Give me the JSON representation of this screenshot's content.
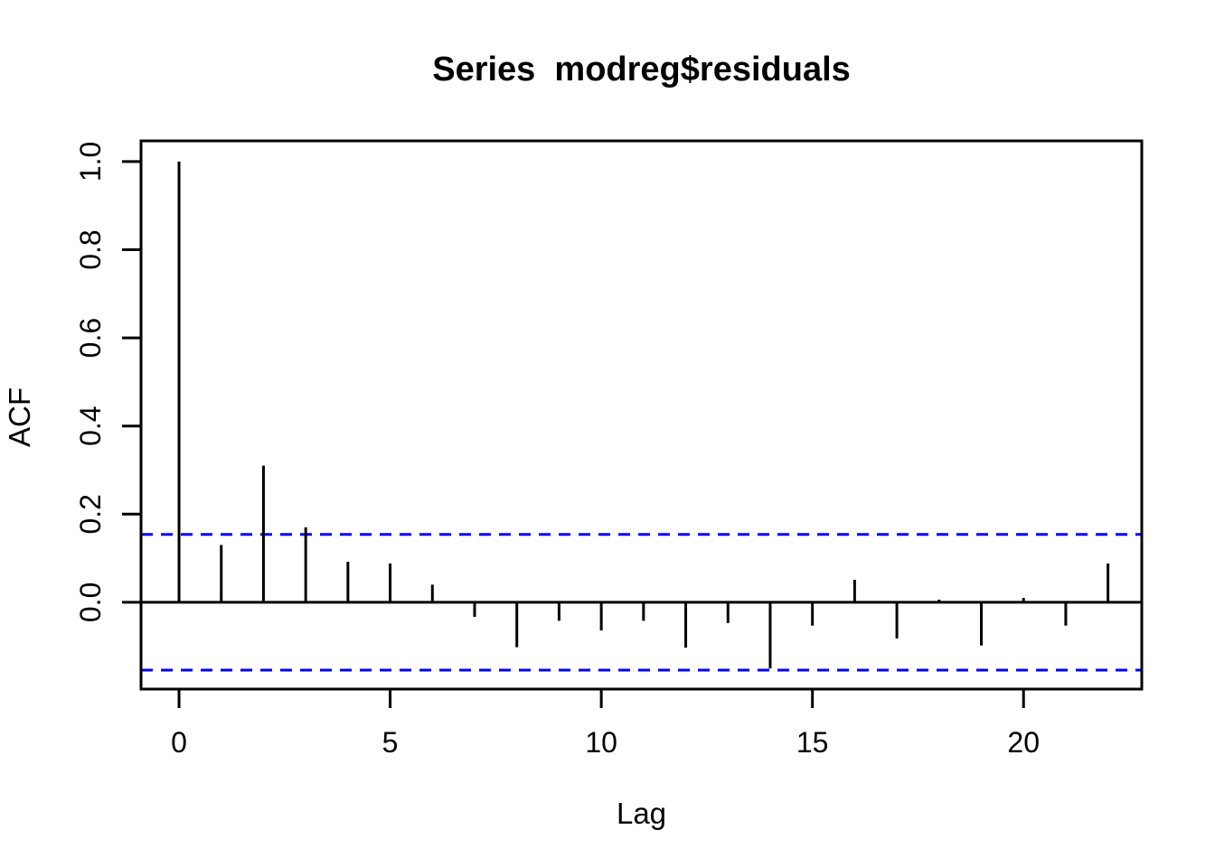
{
  "chart_data": {
    "type": "bar",
    "subtype": "acf-stem-plot",
    "title": "Series  modreg$residuals",
    "xlabel": "Lag",
    "ylabel": "ACF",
    "x": [
      0,
      1,
      2,
      3,
      4,
      5,
      6,
      7,
      8,
      9,
      10,
      11,
      12,
      13,
      14,
      15,
      16,
      17,
      18,
      19,
      20,
      21,
      22
    ],
    "values": [
      1.0,
      0.13,
      0.31,
      0.17,
      0.092,
      0.088,
      0.04,
      -0.033,
      -0.102,
      -0.042,
      -0.064,
      -0.042,
      -0.103,
      -0.047,
      -0.15,
      -0.053,
      0.051,
      -0.082,
      0.006,
      -0.098,
      0.01,
      -0.053,
      0.088
    ],
    "confidence_upper": 0.154,
    "confidence_lower": -0.154,
    "zero_line": 0,
    "xlim": [
      -0.9,
      22.8
    ],
    "ylim": [
      -0.197,
      1.047
    ],
    "xticks": [
      0,
      5,
      10,
      15,
      20
    ],
    "xtick_labels": [
      "0",
      "5",
      "10",
      "15",
      "20"
    ],
    "yticks": [
      0.0,
      0.2,
      0.4,
      0.6,
      0.8,
      1.0
    ],
    "ytick_labels": [
      "0.0",
      "0.2",
      "0.4",
      "0.6",
      "0.8",
      "1.0"
    ],
    "grid": false,
    "legend": null,
    "colors": {
      "spike": "#000000",
      "axis": "#000000",
      "confidence": "#0000FF",
      "background": "#FFFFFF"
    }
  }
}
